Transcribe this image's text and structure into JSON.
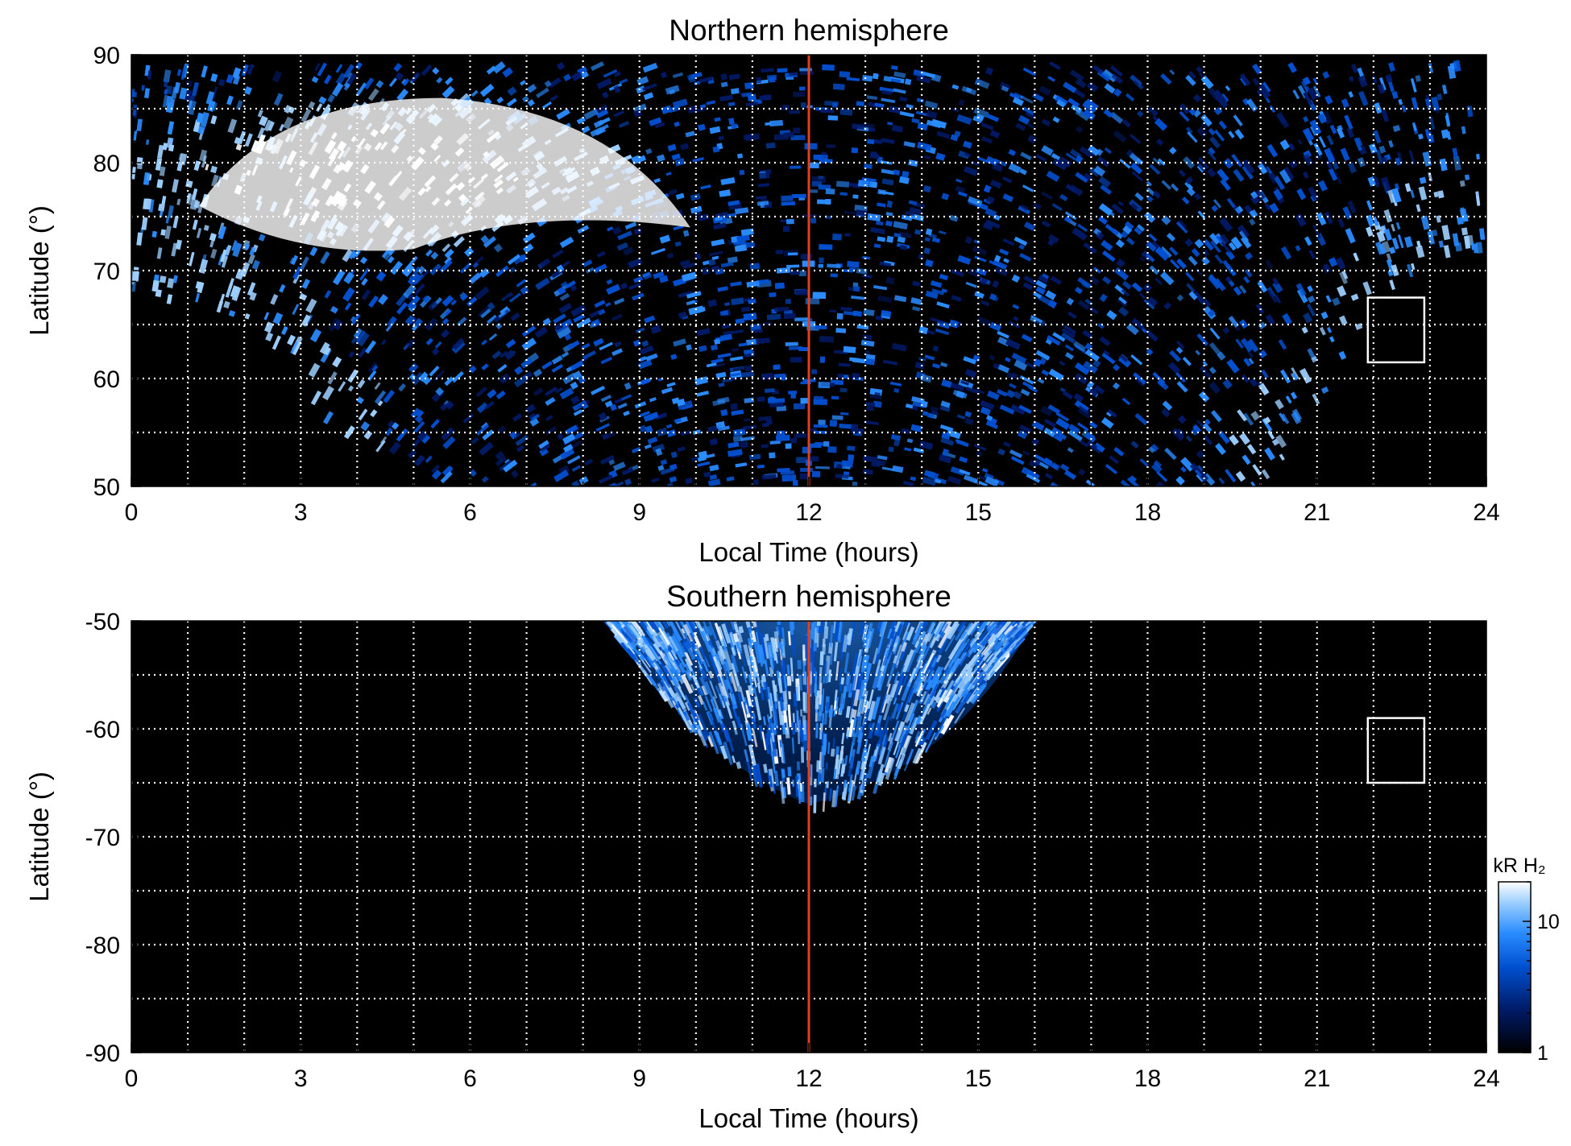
{
  "chart_data": [
    {
      "type": "heatmap",
      "title": "Northern hemisphere",
      "xlabel": "Local Time (hours)",
      "ylabel": "Latitude (°)",
      "xlim": [
        0,
        24
      ],
      "ylim": [
        50,
        90
      ],
      "x_ticks": [
        "0",
        "3",
        "6",
        "9",
        "12",
        "15",
        "18",
        "21",
        "24"
      ],
      "y_ticks": [
        "50",
        "60",
        "70",
        "80",
        "90"
      ],
      "grid": true,
      "grid_x_every": 1,
      "grid_y_every": 5,
      "reference_line_x": 12,
      "highlight_box": {
        "x": [
          21.9,
          22.9
        ],
        "y": [
          61.5,
          67.5
        ]
      },
      "bright_region": {
        "x": [
          0,
          10
        ],
        "y": [
          70,
          88
        ],
        "peak_kR": 20
      },
      "dayside_emission": {
        "x": [
          3,
          21
        ],
        "y": [
          50,
          85
        ],
        "typical_kR": 4
      },
      "no_data_boundary": {
        "x": [
          0,
          1,
          2,
          3,
          4,
          6,
          18,
          20,
          21,
          22,
          23,
          24
        ],
        "y": [
          68,
          67,
          65,
          60,
          52,
          50,
          50,
          50,
          57,
          67,
          71,
          72
        ]
      }
    },
    {
      "type": "heatmap",
      "title": "Southern hemisphere",
      "xlabel": "Local Time (hours)",
      "ylabel": "Latitude (°)",
      "xlim": [
        0,
        24
      ],
      "ylim": [
        -90,
        -50
      ],
      "x_ticks": [
        "0",
        "3",
        "6",
        "9",
        "12",
        "15",
        "18",
        "21",
        "24"
      ],
      "y_ticks": [
        "-90",
        "-80",
        "-70",
        "-60",
        "-50"
      ],
      "grid": true,
      "grid_x_every": 1,
      "grid_y_every": 5,
      "reference_line_x": 12,
      "highlight_box": {
        "x": [
          21.9,
          22.9
        ],
        "y": [
          -65,
          -59
        ]
      },
      "emission_region": {
        "x": [
          8.5,
          16
        ],
        "y": [
          -67,
          -50
        ],
        "typical_kR": 6
      }
    }
  ],
  "colorbar": {
    "title": "kR H₂",
    "ticks": [
      "1",
      "10"
    ],
    "range": [
      1,
      20
    ],
    "scale": "log",
    "colors": [
      "#000000",
      "#001a66",
      "#0050d0",
      "#2a8cff",
      "#9ccfff",
      "#ffffff"
    ]
  },
  "colors": {
    "background": "#000000",
    "reference_line": "#e0411c",
    "grid": "#ffffff",
    "box": "#ffffff"
  }
}
